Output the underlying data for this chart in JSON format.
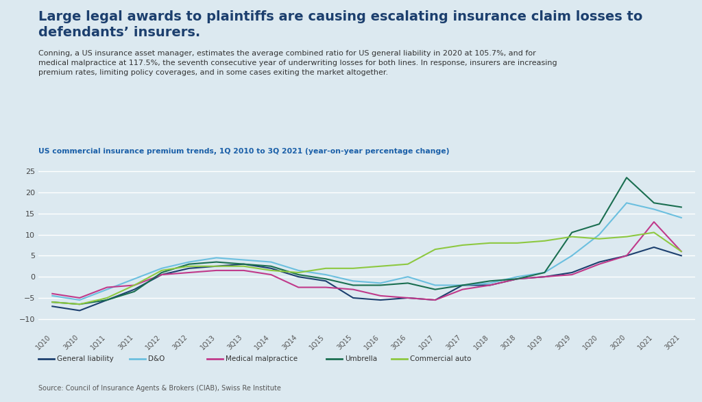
{
  "title_line1": "Large legal awards to plaintiffs are causing escalating insurance claim losses to",
  "title_line2": "defendants’ insurers.",
  "subtitle": "Conning, a US insurance asset manager, estimates the average combined ratio for US general liability in 2020 at 105.7%, and for\nmedical malpractice at 117.5%, the seventh consecutive year of underwriting losses for both lines. In response, insurers are increasing\npremium rates, limiting policy coverages, and in some cases exiting the market altogether.",
  "chart_label": "US commercial insurance premium trends, 1Q 2010 to 3Q 2021 (year-on-year percentage change)",
  "source": "Source: Council of Insurance Agents & Brokers (CIAB), Swiss Re Institute",
  "background_color": "#dce9f0",
  "plot_background_color": "#dce9f0",
  "grid_color": "#c5d5df",
  "ylim": [
    -13,
    27
  ],
  "yticks": [
    -10,
    -5,
    0,
    5,
    10,
    15,
    20,
    25
  ],
  "x_labels": [
    "1Q10",
    "3Q10",
    "1Q11",
    "3Q11",
    "1Q12",
    "3Q12",
    "1Q13",
    "3Q13",
    "1Q14",
    "3Q14",
    "1Q15",
    "3Q15",
    "1Q16",
    "3Q16",
    "1Q17",
    "3Q17",
    "1Q18",
    "3Q18",
    "1Q19",
    "3Q19",
    "1Q20",
    "3Q20",
    "1Q21",
    "3Q21"
  ],
  "colors": {
    "general_liability": "#1c3f6e",
    "dao": "#6bbfdf",
    "medical_malpractice": "#c0398a",
    "umbrella": "#1a6e50",
    "commercial_auto": "#8dc840"
  },
  "general_liability": [
    -7.0,
    -8.0,
    -5.5,
    -3.0,
    0.5,
    2.0,
    2.5,
    3.0,
    2.0,
    0.0,
    -1.0,
    -5.0,
    -5.5,
    -5.0,
    -5.5,
    -2.0,
    -2.0,
    -0.5,
    0.0,
    1.0,
    3.5,
    5.0,
    7.0,
    5.0
  ],
  "dao": [
    -4.5,
    -5.5,
    -3.0,
    -0.5,
    2.0,
    3.5,
    4.5,
    4.0,
    3.5,
    1.5,
    0.5,
    -1.0,
    -1.5,
    0.0,
    -2.0,
    -2.0,
    -1.5,
    0.0,
    1.0,
    5.0,
    10.0,
    17.5,
    16.0,
    14.0
  ],
  "medical_malpractice": [
    -4.0,
    -5.0,
    -2.5,
    -2.0,
    0.5,
    1.0,
    1.5,
    1.5,
    0.5,
    -2.5,
    -2.5,
    -3.0,
    -4.5,
    -5.0,
    -5.5,
    -3.0,
    -2.0,
    -0.5,
    0.0,
    0.5,
    3.0,
    5.0,
    13.0,
    6.0
  ],
  "umbrella": [
    -6.0,
    -6.5,
    -5.5,
    -3.5,
    1.0,
    3.0,
    3.5,
    3.0,
    2.5,
    0.5,
    -0.5,
    -2.0,
    -2.0,
    -1.5,
    -3.0,
    -2.0,
    -1.0,
    -0.5,
    1.0,
    10.5,
    12.5,
    23.5,
    17.5,
    16.5
  ],
  "commercial_auto": [
    -6.0,
    -6.5,
    -5.0,
    -2.0,
    1.5,
    2.5,
    2.5,
    2.5,
    1.5,
    1.0,
    2.0,
    2.0,
    2.5,
    3.0,
    6.5,
    7.5,
    8.0,
    8.0,
    8.5,
    9.5,
    9.0,
    9.5,
    10.5,
    6.0
  ],
  "title_color": "#1c3f6e",
  "subtitle_color": "#333333",
  "label_color": "#1a5fa8"
}
